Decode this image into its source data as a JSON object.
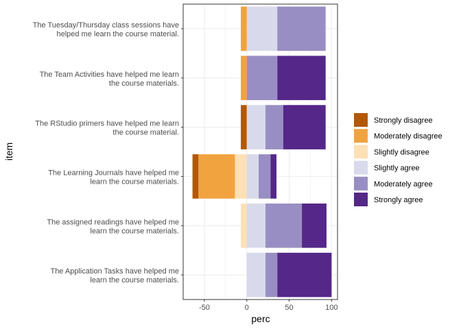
{
  "chart_data": {
    "type": "bar",
    "orientation": "horizontal",
    "stacking": "diverging",
    "xlabel": "perc",
    "ylabel": "item",
    "xlim": [
      -75,
      107
    ],
    "xticks": [
      -50,
      0,
      50,
      100
    ],
    "grid": true,
    "legend_position": "right",
    "categories": [
      [
        "The Tuesday/Thursday class sessions have",
        "helped me learn the course material."
      ],
      [
        "The Team Activities have helped me learn",
        "the course materials."
      ],
      [
        "The RStudio primers have helped me learn",
        "the course material."
      ],
      [
        "The Learning Journals have helped me",
        "learn the course materials."
      ],
      [
        "The assigned readings have helped me",
        "learn the course materials."
      ],
      [
        "The Application Tasks have helped me",
        "learn the course materials."
      ]
    ],
    "series": [
      {
        "name": "Strongly disagree",
        "color": "#b35806",
        "values": [
          0,
          0,
          7,
          7,
          0,
          0
        ]
      },
      {
        "name": "Moderately disagree",
        "color": "#f1a340",
        "values": [
          7,
          7,
          0,
          43,
          0,
          0
        ]
      },
      {
        "name": "Slightly disagree",
        "color": "#fee0b6",
        "values": [
          0,
          0,
          0,
          14,
          7,
          0
        ]
      },
      {
        "name": "Slightly agree",
        "color": "#d8daeb",
        "values": [
          36,
          0,
          22,
          14,
          22,
          22
        ]
      },
      {
        "name": "Moderately agree",
        "color": "#998ec3",
        "values": [
          57,
          36,
          21,
          14,
          43,
          14
        ]
      },
      {
        "name": "Strongly agree",
        "color": "#542788",
        "values": [
          0,
          57,
          50,
          7,
          29,
          64
        ]
      }
    ]
  }
}
